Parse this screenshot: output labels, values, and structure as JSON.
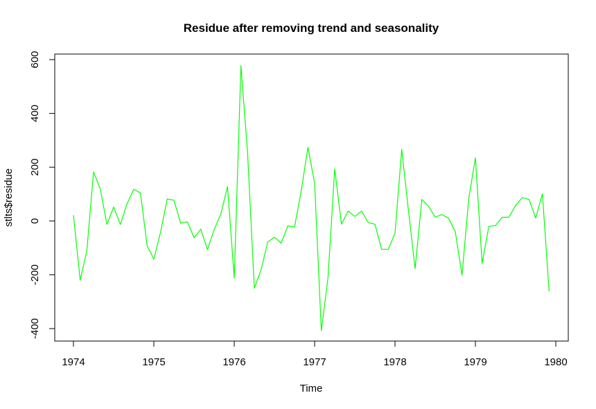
{
  "chart_data": {
    "type": "line",
    "title": "Residue after removing trend and seasonality",
    "xlabel": "Time",
    "ylabel": "stlts$residue",
    "xlim": [
      1974,
      1980
    ],
    "ylim": [
      -400,
      600
    ],
    "x_ticks": [
      1974,
      1975,
      1976,
      1977,
      1978,
      1979,
      1980
    ],
    "y_ticks": [
      -400,
      -200,
      0,
      200,
      400,
      600
    ],
    "x_start": 1974,
    "frequency": 12,
    "grid": false,
    "legend": "none",
    "series": [
      {
        "color": "#00ff00",
        "values": [
          22,
          -220,
          -110,
          182,
          120,
          -13,
          52,
          -13,
          64,
          118,
          104,
          -92,
          -142,
          -42,
          82,
          77,
          -8,
          -3,
          -62,
          -30,
          -106,
          -32,
          26,
          128,
          -212,
          578,
          250,
          -250,
          -182,
          -78,
          -60,
          -82,
          -18,
          -22,
          112,
          274,
          140,
          -408,
          -210,
          194,
          -12,
          37,
          17,
          37,
          -6,
          -12,
          -105,
          -105,
          -45,
          266,
          40,
          -177,
          80,
          55,
          14,
          24,
          10,
          -40,
          -202,
          82,
          235,
          -158,
          -20,
          -17,
          14,
          14,
          58,
          87,
          80,
          11,
          101,
          -261
        ]
      }
    ]
  }
}
